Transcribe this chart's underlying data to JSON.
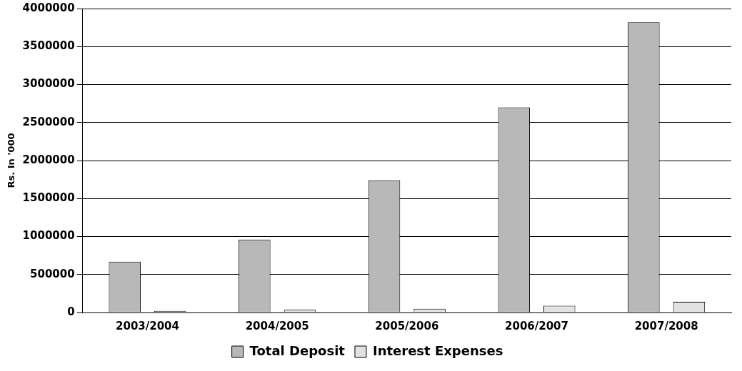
{
  "chart_data": {
    "type": "bar",
    "ylabel": "Rs. In '000",
    "categories": [
      "2003/2004",
      "2004/2005",
      "2005/2006",
      "2006/2007",
      "2007/2008"
    ],
    "series": [
      {
        "name": "Total Deposit",
        "color": "#b8b8b8",
        "values": [
          670000,
          960000,
          1740000,
          2700000,
          3820000
        ]
      },
      {
        "name": "Interest Expenses",
        "color": "#e2e2e2",
        "values": [
          20000,
          40000,
          50000,
          90000,
          140000
        ]
      }
    ],
    "ylim": [
      0,
      4000000
    ],
    "yticks": [
      0,
      500000,
      1000000,
      1500000,
      2000000,
      2500000,
      3000000,
      3500000,
      4000000
    ],
    "grid": "y",
    "legend": "bottom"
  }
}
